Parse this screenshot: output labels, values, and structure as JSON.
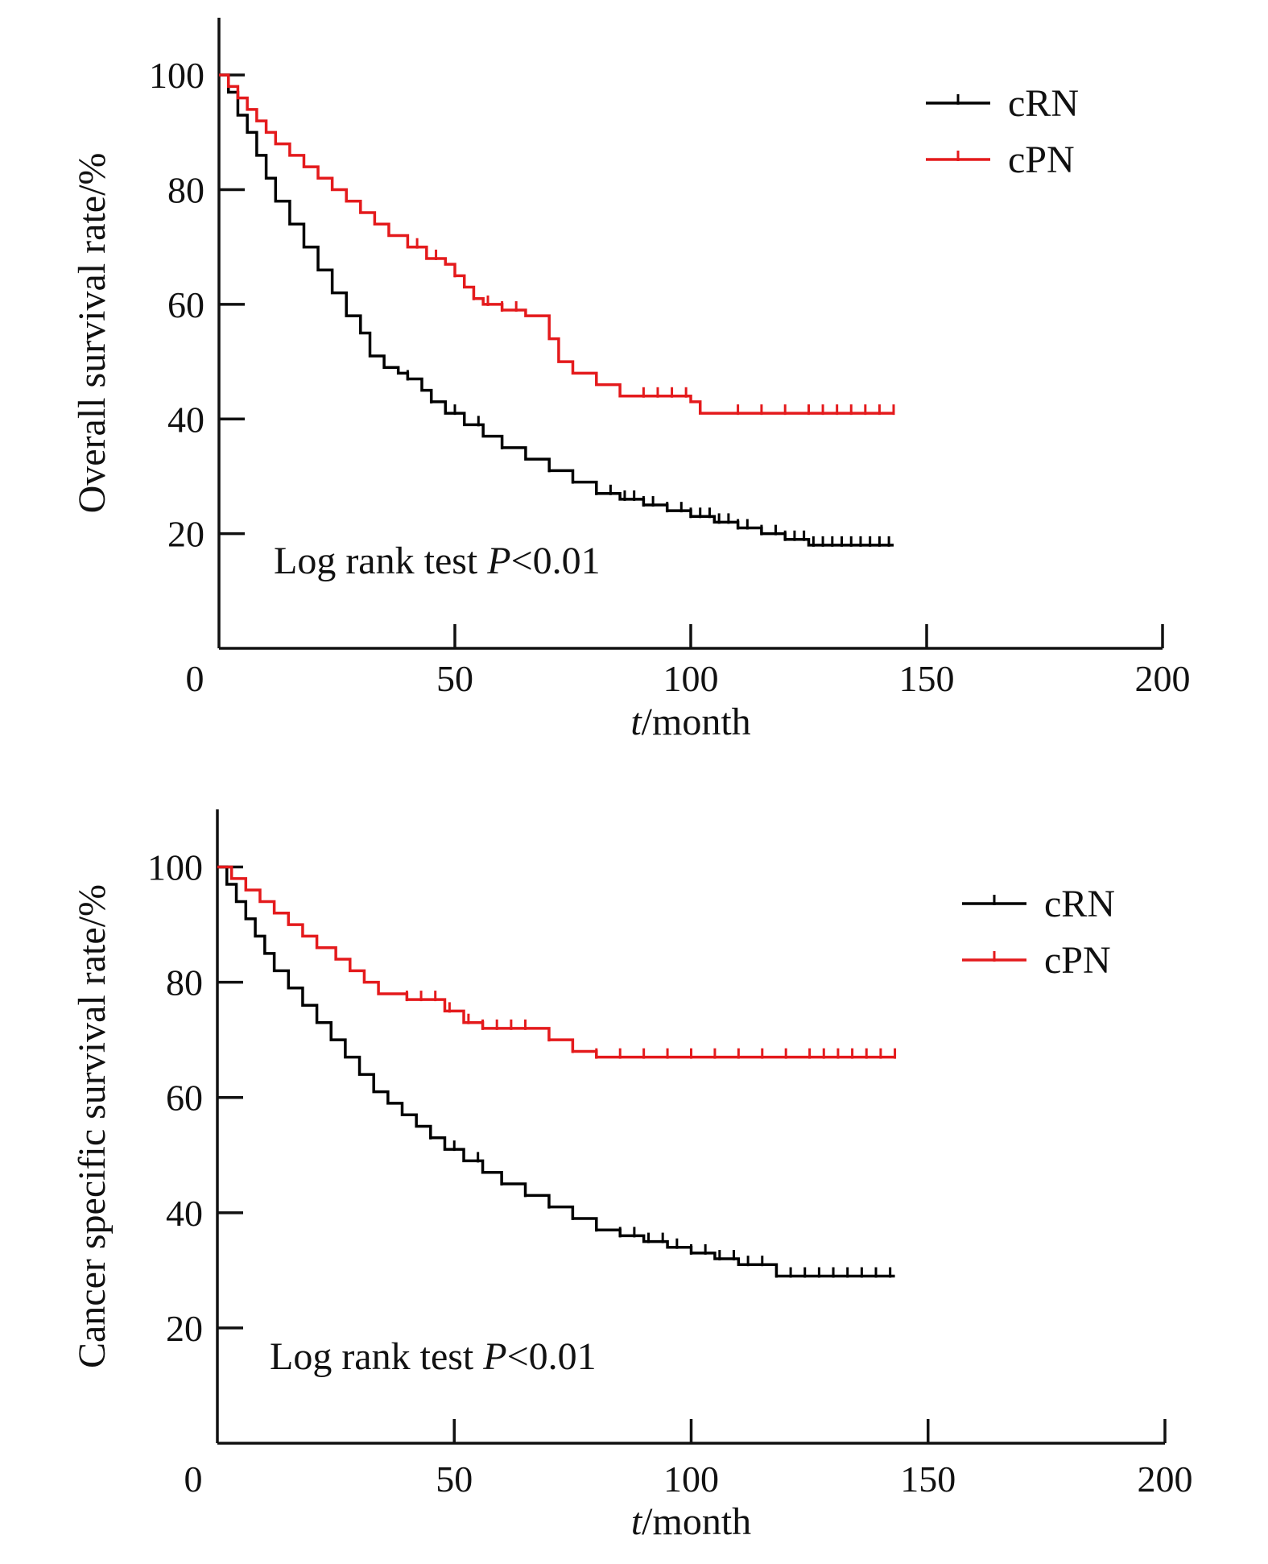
{
  "chart_data": [
    {
      "type": "line",
      "step": true,
      "ylabel": "Overall survival rate/%",
      "xlabel_italic": "t",
      "xlabel_rest": "/month",
      "xlim": [
        0,
        200
      ],
      "ylim": [
        0,
        110
      ],
      "xticks": [
        "0",
        "50",
        "100",
        "150",
        "200"
      ],
      "yticks": [
        "20",
        "40",
        "60",
        "80",
        "100"
      ],
      "annotation_prefix": "Log rank test ",
      "annotation_italic": "P",
      "annotation_suffix": "<0.01",
      "legend_position": "top-right",
      "series": [
        {
          "name": "cRN",
          "color": "#000000",
          "points": [
            [
              0,
              100
            ],
            [
              2,
              97
            ],
            [
              4,
              93
            ],
            [
              6,
              90
            ],
            [
              8,
              86
            ],
            [
              10,
              82
            ],
            [
              12,
              78
            ],
            [
              15,
              74
            ],
            [
              18,
              70
            ],
            [
              21,
              66
            ],
            [
              24,
              62
            ],
            [
              27,
              58
            ],
            [
              30,
              55
            ],
            [
              32,
              51
            ],
            [
              35,
              49
            ],
            [
              38,
              48
            ],
            [
              40,
              47
            ],
            [
              43,
              45
            ],
            [
              45,
              43
            ],
            [
              48,
              41
            ],
            [
              52,
              39
            ],
            [
              56,
              37
            ],
            [
              60,
              35
            ],
            [
              65,
              33
            ],
            [
              70,
              31
            ],
            [
              75,
              29
            ],
            [
              80,
              27
            ],
            [
              85,
              26
            ],
            [
              90,
              25
            ],
            [
              95,
              24
            ],
            [
              100,
              23
            ],
            [
              105,
              22
            ],
            [
              110,
              21
            ],
            [
              115,
              20
            ],
            [
              120,
              19
            ],
            [
              125,
              18
            ],
            [
              143,
              18
            ]
          ],
          "censor_x": [
            40,
            45,
            50,
            55,
            60,
            70,
            75,
            80,
            83,
            86,
            88,
            90,
            92,
            95,
            98,
            100,
            102,
            104,
            106,
            108,
            110,
            112,
            115,
            118,
            120,
            122,
            124,
            126,
            128,
            130,
            132,
            134,
            136,
            138,
            140,
            142
          ]
        },
        {
          "name": "cPN",
          "color": "#e41a1c",
          "points": [
            [
              0,
              100
            ],
            [
              2,
              98
            ],
            [
              4,
              96
            ],
            [
              6,
              94
            ],
            [
              8,
              92
            ],
            [
              10,
              90
            ],
            [
              12,
              88
            ],
            [
              15,
              86
            ],
            [
              18,
              84
            ],
            [
              21,
              82
            ],
            [
              24,
              80
            ],
            [
              27,
              78
            ],
            [
              30,
              76
            ],
            [
              33,
              74
            ],
            [
              36,
              72
            ],
            [
              40,
              70
            ],
            [
              44,
              68
            ],
            [
              48,
              67
            ],
            [
              50,
              65
            ],
            [
              52,
              63
            ],
            [
              54,
              61
            ],
            [
              56,
              60
            ],
            [
              60,
              59
            ],
            [
              65,
              58
            ],
            [
              70,
              54
            ],
            [
              72,
              50
            ],
            [
              75,
              48
            ],
            [
              80,
              46
            ],
            [
              85,
              44
            ],
            [
              100,
              43
            ],
            [
              102,
              41
            ],
            [
              143,
              41
            ]
          ],
          "censor_x": [
            42,
            46,
            50,
            54,
            57,
            60,
            63,
            90,
            93,
            96,
            99,
            110,
            115,
            120,
            125,
            128,
            131,
            134,
            137,
            140,
            143
          ]
        }
      ]
    },
    {
      "type": "line",
      "step": true,
      "ylabel": "Cancer specific survival rate/%",
      "xlabel_italic": "t",
      "xlabel_rest": "/month",
      "xlim": [
        0,
        200
      ],
      "ylim": [
        0,
        110
      ],
      "xticks": [
        "0",
        "50",
        "100",
        "150",
        "200"
      ],
      "yticks": [
        "20",
        "40",
        "60",
        "80",
        "100"
      ],
      "annotation_prefix": "Log rank test ",
      "annotation_italic": "P",
      "annotation_suffix": "<0.01",
      "legend_position": "top-right",
      "series": [
        {
          "name": "cRN",
          "color": "#000000",
          "points": [
            [
              0,
              100
            ],
            [
              2,
              97
            ],
            [
              4,
              94
            ],
            [
              6,
              91
            ],
            [
              8,
              88
            ],
            [
              10,
              85
            ],
            [
              12,
              82
            ],
            [
              15,
              79
            ],
            [
              18,
              76
            ],
            [
              21,
              73
            ],
            [
              24,
              70
            ],
            [
              27,
              67
            ],
            [
              30,
              64
            ],
            [
              33,
              61
            ],
            [
              36,
              59
            ],
            [
              39,
              57
            ],
            [
              42,
              55
            ],
            [
              45,
              53
            ],
            [
              48,
              51
            ],
            [
              52,
              49
            ],
            [
              56,
              47
            ],
            [
              60,
              45
            ],
            [
              65,
              43
            ],
            [
              70,
              41
            ],
            [
              75,
              39
            ],
            [
              80,
              37
            ],
            [
              85,
              36
            ],
            [
              90,
              35
            ],
            [
              95,
              34
            ],
            [
              100,
              33
            ],
            [
              105,
              32
            ],
            [
              110,
              31
            ],
            [
              118,
              29
            ],
            [
              143,
              29
            ]
          ],
          "censor_x": [
            45,
            50,
            55,
            60,
            65,
            70,
            75,
            80,
            85,
            88,
            91,
            94,
            97,
            100,
            103,
            106,
            109,
            112,
            115,
            118,
            121,
            124,
            127,
            130,
            133,
            136,
            139,
            142
          ]
        },
        {
          "name": "cPN",
          "color": "#e41a1c",
          "points": [
            [
              0,
              100
            ],
            [
              3,
              98
            ],
            [
              6,
              96
            ],
            [
              9,
              94
            ],
            [
              12,
              92
            ],
            [
              15,
              90
            ],
            [
              18,
              88
            ],
            [
              21,
              86
            ],
            [
              25,
              84
            ],
            [
              28,
              82
            ],
            [
              31,
              80
            ],
            [
              34,
              78
            ],
            [
              40,
              77
            ],
            [
              48,
              75
            ],
            [
              52,
              73
            ],
            [
              56,
              72
            ],
            [
              65,
              72
            ],
            [
              70,
              70
            ],
            [
              75,
              68
            ],
            [
              80,
              67
            ],
            [
              143,
              67
            ]
          ],
          "censor_x": [
            40,
            43,
            46,
            49,
            53,
            56,
            59,
            62,
            65,
            70,
            75,
            80,
            85,
            90,
            95,
            100,
            105,
            110,
            115,
            120,
            125,
            128,
            131,
            134,
            137,
            140,
            143
          ]
        }
      ]
    }
  ]
}
